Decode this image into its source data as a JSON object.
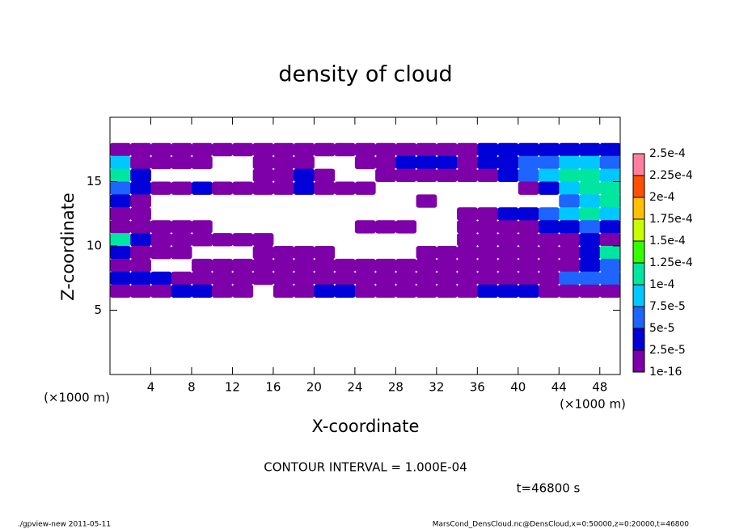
{
  "chart_data": {
    "type": "contour",
    "title": "density of cloud",
    "xlabel": "X-coordinate",
    "ylabel": "Z-coordinate",
    "x_unit": "(×1000 m)",
    "annotation": "CONTOUR INTERVAL = 1.000E-04",
    "time_label": "t=46800 s",
    "footer_left": "./gpview-new  2011-05-11",
    "footer_right": "MarsCond_DensCloud.nc@DensCloud,x=0:50000,z=0:20000,t=46800",
    "xlim": [
      0,
      50
    ],
    "ylim": [
      0,
      20
    ],
    "xticks": [
      4,
      8,
      12,
      16,
      20,
      24,
      28,
      32,
      36,
      40,
      44,
      48
    ],
    "yticks": [
      5,
      10,
      15
    ],
    "x": [
      1,
      3,
      5,
      7,
      9,
      11,
      13,
      15,
      17,
      19,
      21,
      23,
      25,
      27,
      29,
      31,
      33,
      35,
      37,
      39,
      41,
      43,
      45,
      47,
      49
    ],
    "z": [
      17.5,
      16.5,
      15.5,
      14.5,
      13.5,
      12.5,
      11.5,
      10.5,
      9.5,
      8.5,
      7.5,
      6.5
    ],
    "values": [
      [
        1e-05,
        1e-05,
        1e-05,
        1e-05,
        1e-05,
        1e-05,
        1e-05,
        1e-05,
        1e-05,
        1e-05,
        1e-05,
        1e-05,
        1e-05,
        1e-05,
        1e-05,
        1e-05,
        1e-05,
        1e-05,
        3e-05,
        3e-05,
        3e-05,
        3e-05,
        3e-05,
        3e-05,
        3e-05
      ],
      [
        8.5e-05,
        1e-05,
        1e-05,
        1e-05,
        1e-05,
        null,
        null,
        1e-05,
        1e-05,
        1e-05,
        null,
        null,
        1e-05,
        1e-05,
        3e-05,
        3e-05,
        3e-05,
        1e-05,
        3e-05,
        3e-05,
        6e-05,
        6e-05,
        8.5e-05,
        8.5e-05,
        6e-05
      ],
      [
        0.00011,
        3e-05,
        null,
        null,
        null,
        null,
        null,
        1e-05,
        1e-05,
        3e-05,
        1e-05,
        null,
        null,
        1e-05,
        1e-05,
        1e-05,
        1e-05,
        1e-05,
        1e-05,
        3e-05,
        6e-05,
        8.5e-05,
        0.00011,
        0.00011,
        8.5e-05
      ],
      [
        6e-05,
        3e-05,
        1e-05,
        1e-05,
        3e-05,
        1e-05,
        1e-05,
        1e-05,
        1e-05,
        3e-05,
        1e-05,
        1e-05,
        1e-05,
        null,
        null,
        null,
        null,
        null,
        null,
        null,
        1e-05,
        3e-05,
        8.5e-05,
        0.00011,
        0.00011
      ],
      [
        3e-05,
        1e-05,
        null,
        null,
        null,
        null,
        null,
        null,
        null,
        null,
        null,
        null,
        null,
        null,
        null,
        1e-05,
        null,
        null,
        null,
        null,
        null,
        null,
        6e-05,
        8.5e-05,
        0.00011
      ],
      [
        1e-05,
        1e-05,
        null,
        null,
        null,
        null,
        null,
        null,
        null,
        null,
        null,
        null,
        null,
        null,
        null,
        null,
        null,
        1e-05,
        1e-05,
        3e-05,
        3e-05,
        6e-05,
        8.5e-05,
        0.00011,
        8.5e-05
      ],
      [
        1e-05,
        1e-05,
        1e-05,
        1e-05,
        1e-05,
        null,
        null,
        null,
        null,
        null,
        null,
        null,
        1e-05,
        1e-05,
        1e-05,
        null,
        null,
        1e-05,
        1e-05,
        1e-05,
        1e-05,
        3e-05,
        3e-05,
        6e-05,
        3e-05
      ],
      [
        0.00011,
        3e-05,
        1e-05,
        1e-05,
        1e-05,
        1e-05,
        1e-05,
        1e-05,
        null,
        null,
        null,
        null,
        null,
        null,
        null,
        null,
        null,
        1e-05,
        1e-05,
        1e-05,
        1e-05,
        1e-05,
        1e-05,
        3e-05,
        1e-05
      ],
      [
        3e-05,
        1e-05,
        1e-05,
        1e-05,
        null,
        null,
        null,
        1e-05,
        1e-05,
        1e-05,
        1e-05,
        null,
        null,
        null,
        null,
        1e-05,
        1e-05,
        1e-05,
        1e-05,
        1e-05,
        1e-05,
        1e-05,
        1e-05,
        3e-05,
        0.00011
      ],
      [
        1e-05,
        1e-05,
        null,
        null,
        1e-05,
        1e-05,
        1e-05,
        1e-05,
        1e-05,
        1e-05,
        1e-05,
        1e-05,
        1e-05,
        1e-05,
        1e-05,
        1e-05,
        1e-05,
        1e-05,
        1e-05,
        1e-05,
        1e-05,
        1e-05,
        1e-05,
        3e-05,
        6e-05
      ],
      [
        3e-05,
        3e-05,
        3e-05,
        1e-05,
        1e-05,
        1e-05,
        1e-05,
        1e-05,
        1e-05,
        1e-05,
        1e-05,
        1e-05,
        1e-05,
        1e-05,
        1e-05,
        1e-05,
        1e-05,
        1e-05,
        1e-05,
        1e-05,
        1e-05,
        1e-05,
        6e-05,
        6e-05,
        6e-05
      ],
      [
        1e-05,
        1e-05,
        1e-05,
        3e-05,
        3e-05,
        1e-05,
        1e-05,
        null,
        1e-05,
        1e-05,
        3e-05,
        3e-05,
        1e-05,
        1e-05,
        1e-05,
        1e-05,
        1e-05,
        1e-05,
        3e-05,
        3e-05,
        3e-05,
        1e-05,
        1e-05,
        1e-05,
        1e-05
      ]
    ],
    "levels": [
      1e-16,
      {
        "value": 2.5e-05,
        "label": "2.5e-5"
      },
      {
        "value": 5e-05,
        "label": "5e-5"
      },
      {
        "value": 7.5e-05,
        "label": "7.5e-5"
      },
      {
        "value": 0.0001,
        "label": "1e-4"
      },
      {
        "value": 0.000125,
        "label": "1.25e-4"
      },
      {
        "value": 0.00015,
        "label": "1.5e-4"
      },
      {
        "value": 0.000175,
        "label": "1.75e-4"
      },
      {
        "value": 0.0002,
        "label": "2e-4"
      },
      {
        "value": 0.000225,
        "label": "2.25e-4"
      },
      {
        "value": 0.00025,
        "label": "2.5e-4"
      }
    ],
    "colors": [
      "#7d00a8",
      "#0000d8",
      "#1e64ff",
      "#00c8ff",
      "#00e6a0",
      "#32ff00",
      "#c8ff00",
      "#ffc000",
      "#ff5000",
      "#ff7f9f"
    ]
  }
}
